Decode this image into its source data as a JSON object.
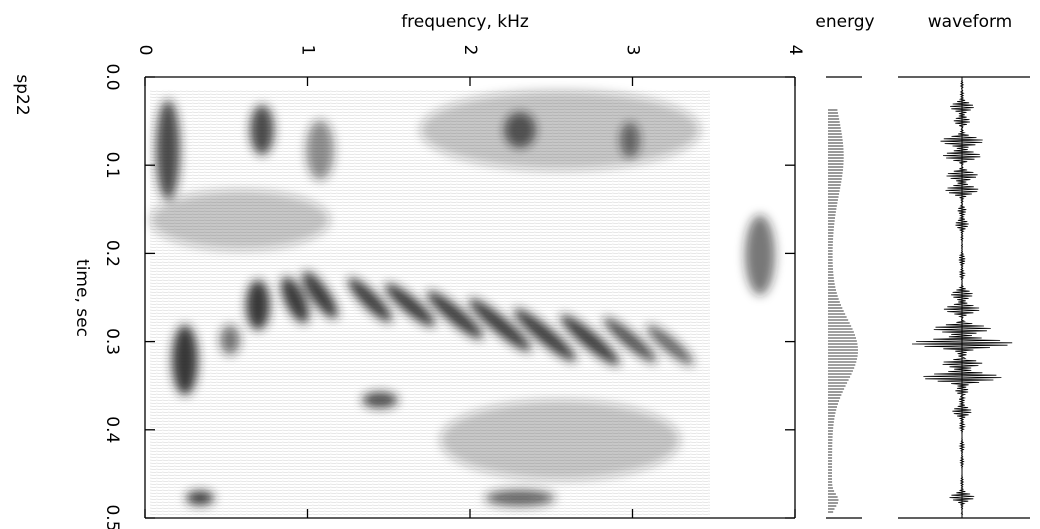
{
  "chart_data": {
    "type": "spectrogram",
    "label": "sp22",
    "xlabel": "frequency, kHz",
    "ylabel": "time, sec",
    "xlim": [
      0,
      4
    ],
    "xticks": [
      0,
      1,
      2,
      3,
      4
    ],
    "ylim": [
      0,
      0.5
    ],
    "yticks": [
      {
        "value": 0,
        "label": "0.0"
      },
      0.1,
      0.2,
      0.3,
      0.4,
      0.5
    ],
    "panels": [
      "energy",
      "waveform"
    ]
  }
}
